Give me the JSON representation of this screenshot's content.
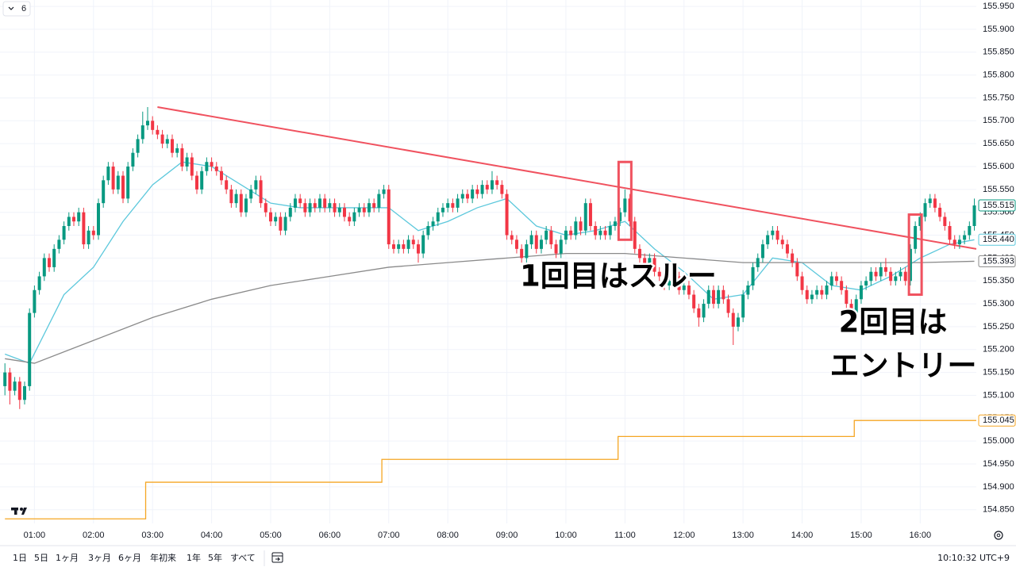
{
  "header": {
    "badge": "6"
  },
  "toolbar": {
    "ranges": [
      "1日",
      "5日",
      "1ヶ月",
      "3ヶ月",
      "6ヶ月",
      "年初来",
      "1年",
      "5年",
      "すべて"
    ],
    "clock": "10:10:32 UTC+9"
  },
  "chart_data": {
    "type": "candlestick",
    "up_color": "#089981",
    "down_color": "#f23645",
    "xlim": [
      "00:25",
      "16:57"
    ],
    "ylim": [
      154.82,
      155.964
    ],
    "xticks": [
      "01:00",
      "02:00",
      "03:00",
      "04:00",
      "05:00",
      "06:00",
      "07:00",
      "08:00",
      "09:00",
      "10:00",
      "11:00",
      "12:00",
      "13:00",
      "14:00",
      "15:00",
      "16:00"
    ],
    "yticks": [
      {
        "value": 154.85,
        "label": "154.850"
      },
      {
        "value": 154.9,
        "label": "154.900"
      },
      {
        "value": 154.95,
        "label": "154.950"
      },
      {
        "value": 155.0,
        "label": "155.000"
      },
      {
        "value": 155.05,
        "label": "155.050"
      },
      {
        "value": 155.1,
        "label": "155.100"
      },
      {
        "value": 155.15,
        "label": "155.150"
      },
      {
        "value": 155.2,
        "label": "155.200"
      },
      {
        "value": 155.25,
        "label": "155.250"
      },
      {
        "value": 155.3,
        "label": "155.300"
      },
      {
        "value": 155.35,
        "label": "155.350"
      },
      {
        "value": 155.4,
        "label": "155.400"
      },
      {
        "value": 155.45,
        "label": "155.450"
      },
      {
        "value": 155.5,
        "label": "155.500"
      },
      {
        "value": 155.55,
        "label": "155.550"
      },
      {
        "value": 155.6,
        "label": "155.600"
      },
      {
        "value": 155.65,
        "label": "155.650"
      },
      {
        "value": 155.7,
        "label": "155.700"
      },
      {
        "value": 155.75,
        "label": "155.750"
      },
      {
        "value": 155.8,
        "label": "155.800"
      },
      {
        "value": 155.85,
        "label": "155.850"
      },
      {
        "value": 155.9,
        "label": "155.900"
      },
      {
        "value": 155.95,
        "label": "155.950"
      }
    ],
    "grid": true,
    "x": [
      "00:30",
      "00:35",
      "00:40",
      "00:45",
      "00:50",
      "00:55",
      "01:00",
      "01:05",
      "01:10",
      "01:15",
      "01:20",
      "01:25",
      "01:30",
      "01:35",
      "01:40",
      "01:45",
      "01:50",
      "01:55",
      "02:00",
      "02:05",
      "02:10",
      "02:15",
      "02:20",
      "02:25",
      "02:30",
      "02:35",
      "02:40",
      "02:45",
      "02:50",
      "02:55",
      "03:00",
      "03:05",
      "03:10",
      "03:15",
      "03:20",
      "03:25",
      "03:30",
      "03:35",
      "03:40",
      "03:45",
      "03:50",
      "03:55",
      "04:00",
      "04:05",
      "04:10",
      "04:15",
      "04:20",
      "04:25",
      "04:30",
      "04:35",
      "04:40",
      "04:45",
      "04:50",
      "04:55",
      "05:00",
      "05:05",
      "05:10",
      "05:15",
      "05:20",
      "05:25",
      "05:30",
      "05:35",
      "05:40",
      "05:45",
      "05:50",
      "05:55",
      "06:00",
      "06:05",
      "06:10",
      "06:15",
      "06:20",
      "06:25",
      "06:30",
      "06:35",
      "06:40",
      "06:45",
      "06:50",
      "06:55",
      "07:00",
      "07:05",
      "07:10",
      "07:15",
      "07:20",
      "07:25",
      "07:30",
      "07:35",
      "07:40",
      "07:45",
      "07:50",
      "07:55",
      "08:00",
      "08:05",
      "08:10",
      "08:15",
      "08:20",
      "08:25",
      "08:30",
      "08:35",
      "08:40",
      "08:45",
      "08:50",
      "08:55",
      "09:00",
      "09:05",
      "09:10",
      "09:15",
      "09:20",
      "09:25",
      "09:30",
      "09:35",
      "09:40",
      "09:45",
      "09:50",
      "09:55",
      "10:00",
      "10:05",
      "10:10",
      "10:15",
      "10:20",
      "10:25",
      "10:30",
      "10:35",
      "10:40",
      "10:45",
      "10:50",
      "10:55",
      "11:00",
      "11:05",
      "11:10",
      "11:15",
      "11:20",
      "11:25",
      "11:30",
      "11:35",
      "11:40",
      "11:45",
      "11:50",
      "11:55",
      "12:00",
      "12:05",
      "12:10",
      "12:15",
      "12:20",
      "12:25",
      "12:30",
      "12:35",
      "12:40",
      "12:45",
      "12:50",
      "12:55",
      "13:00",
      "13:05",
      "13:10",
      "13:15",
      "13:20",
      "13:25",
      "13:30",
      "13:35",
      "13:40",
      "13:45",
      "13:50",
      "13:55",
      "14:00",
      "14:05",
      "14:10",
      "14:15",
      "14:20",
      "14:25",
      "14:30",
      "14:35",
      "14:40",
      "14:45",
      "14:50",
      "14:55",
      "15:00",
      "15:05",
      "15:10",
      "15:15",
      "15:20",
      "15:25",
      "15:30",
      "15:35",
      "15:40",
      "15:45",
      "15:50",
      "15:55",
      "16:00",
      "16:05",
      "16:10",
      "16:15",
      "16:20",
      "16:25",
      "16:30",
      "16:35",
      "16:40",
      "16:45",
      "16:50",
      "16:55"
    ],
    "open": [
      155.12,
      155.15,
      155.11,
      155.13,
      155.09,
      155.12,
      155.28,
      155.33,
      155.36,
      155.4,
      155.38,
      155.42,
      155.44,
      155.47,
      155.49,
      155.48,
      155.5,
      155.43,
      155.46,
      155.45,
      155.52,
      155.57,
      155.6,
      155.55,
      155.58,
      155.53,
      155.6,
      155.63,
      155.66,
      155.69,
      155.7,
      155.68,
      155.67,
      155.65,
      155.66,
      155.63,
      155.64,
      155.6,
      155.62,
      155.58,
      155.55,
      155.59,
      155.61,
      155.6,
      155.59,
      155.57,
      155.55,
      155.52,
      155.54,
      155.5,
      155.53,
      155.55,
      155.57,
      155.52,
      155.5,
      155.48,
      155.49,
      155.46,
      155.49,
      155.51,
      155.53,
      155.52,
      155.5,
      155.52,
      155.51,
      155.53,
      155.51,
      155.52,
      155.5,
      155.51,
      155.49,
      155.48,
      155.5,
      155.51,
      155.5,
      155.52,
      155.51,
      155.54,
      155.55,
      155.43,
      155.42,
      155.43,
      155.42,
      155.44,
      155.43,
      155.41,
      155.45,
      155.47,
      155.48,
      155.5,
      155.51,
      155.52,
      155.51,
      155.53,
      155.54,
      155.53,
      155.55,
      155.54,
      155.56,
      155.55,
      155.57,
      155.56,
      155.54,
      155.45,
      155.44,
      155.42,
      155.4,
      155.43,
      155.45,
      155.42,
      155.44,
      155.46,
      155.43,
      155.41,
      155.44,
      155.46,
      155.45,
      155.48,
      155.46,
      155.52,
      155.47,
      155.45,
      155.46,
      155.45,
      155.47,
      155.48,
      155.5,
      155.53,
      155.48,
      155.42,
      155.4,
      155.38,
      155.4,
      155.37,
      155.36,
      155.34,
      155.35,
      155.36,
      155.33,
      155.34,
      155.32,
      155.29,
      155.27,
      155.3,
      155.33,
      155.3,
      155.33,
      155.31,
      155.28,
      155.25,
      155.27,
      155.32,
      155.34,
      155.38,
      155.4,
      155.43,
      155.45,
      155.46,
      155.44,
      155.43,
      155.41,
      155.39,
      155.36,
      155.33,
      155.31,
      155.32,
      155.33,
      155.32,
      155.34,
      155.36,
      155.35,
      155.33,
      155.3,
      155.28,
      155.31,
      155.34,
      155.35,
      155.37,
      155.36,
      155.38,
      155.37,
      155.35,
      155.36,
      155.37,
      155.35,
      155.42,
      155.47,
      155.49,
      155.52,
      155.53,
      155.51,
      155.49,
      155.47,
      155.44,
      155.43,
      155.44,
      155.45,
      155.47
    ],
    "high": [
      155.17,
      155.16,
      155.14,
      155.14,
      155.13,
      155.29,
      155.34,
      155.37,
      155.41,
      155.41,
      155.43,
      155.45,
      155.48,
      155.5,
      155.5,
      155.51,
      155.51,
      155.47,
      155.47,
      155.53,
      155.58,
      155.61,
      155.61,
      155.59,
      155.59,
      155.61,
      155.64,
      155.67,
      155.72,
      155.73,
      155.71,
      155.69,
      155.68,
      155.67,
      155.67,
      155.65,
      155.65,
      155.63,
      155.63,
      155.59,
      155.6,
      155.62,
      155.62,
      155.61,
      155.6,
      155.58,
      155.56,
      155.55,
      155.55,
      155.54,
      155.56,
      155.58,
      155.58,
      155.53,
      155.51,
      155.5,
      155.5,
      155.5,
      155.52,
      155.54,
      155.54,
      155.53,
      155.53,
      155.53,
      155.54,
      155.54,
      155.53,
      155.53,
      155.52,
      155.52,
      155.5,
      155.51,
      155.52,
      155.52,
      155.53,
      155.53,
      155.55,
      155.56,
      155.56,
      155.44,
      155.44,
      155.44,
      155.45,
      155.45,
      155.44,
      155.46,
      155.48,
      155.49,
      155.51,
      155.52,
      155.53,
      155.53,
      155.54,
      155.55,
      155.55,
      155.56,
      155.56,
      155.57,
      155.57,
      155.59,
      155.58,
      155.57,
      155.55,
      155.46,
      155.45,
      155.43,
      155.44,
      155.46,
      155.46,
      155.45,
      155.47,
      155.47,
      155.44,
      155.45,
      155.47,
      155.47,
      155.49,
      155.49,
      155.53,
      155.53,
      155.48,
      155.47,
      155.47,
      155.48,
      155.49,
      155.51,
      155.55,
      155.54,
      155.49,
      155.43,
      155.41,
      155.41,
      155.41,
      155.38,
      155.37,
      155.36,
      155.37,
      155.37,
      155.35,
      155.35,
      155.33,
      155.3,
      155.31,
      155.34,
      155.34,
      155.34,
      155.34,
      155.32,
      155.29,
      155.28,
      155.33,
      155.35,
      155.39,
      155.41,
      155.44,
      155.46,
      155.47,
      155.47,
      155.45,
      155.44,
      155.42,
      155.4,
      155.37,
      155.34,
      155.33,
      155.34,
      155.34,
      155.35,
      155.37,
      155.37,
      155.36,
      155.34,
      155.31,
      155.32,
      155.35,
      155.36,
      155.38,
      155.38,
      155.39,
      155.4,
      155.38,
      155.37,
      155.38,
      155.38,
      155.43,
      155.48,
      155.5,
      155.53,
      155.54,
      155.54,
      155.52,
      155.5,
      155.48,
      155.45,
      155.45,
      155.46,
      155.48,
      155.53
    ],
    "low": [
      155.1,
      155.08,
      155.1,
      155.07,
      155.08,
      155.11,
      155.27,
      155.32,
      155.35,
      155.37,
      155.37,
      155.41,
      155.43,
      155.46,
      155.47,
      155.47,
      155.42,
      155.42,
      155.44,
      155.44,
      155.51,
      155.56,
      155.54,
      155.54,
      155.52,
      155.52,
      155.59,
      155.62,
      155.65,
      155.68,
      155.67,
      155.66,
      155.64,
      155.64,
      155.62,
      155.62,
      155.59,
      155.59,
      155.57,
      155.54,
      155.54,
      155.58,
      155.59,
      155.58,
      155.56,
      155.54,
      155.51,
      155.51,
      155.49,
      155.49,
      155.52,
      155.54,
      155.51,
      155.49,
      155.47,
      155.47,
      155.45,
      155.45,
      155.48,
      155.5,
      155.51,
      155.49,
      155.49,
      155.5,
      155.5,
      155.5,
      155.5,
      155.49,
      155.49,
      155.48,
      155.47,
      155.47,
      155.49,
      155.49,
      155.49,
      155.5,
      155.5,
      155.53,
      155.42,
      155.41,
      155.41,
      155.41,
      155.41,
      155.42,
      155.39,
      155.4,
      155.44,
      155.46,
      155.47,
      155.49,
      155.5,
      155.5,
      155.5,
      155.52,
      155.52,
      155.52,
      155.53,
      155.53,
      155.54,
      155.54,
      155.55,
      155.53,
      155.44,
      155.43,
      155.41,
      155.39,
      155.39,
      155.42,
      155.41,
      155.41,
      155.43,
      155.42,
      155.4,
      155.4,
      155.43,
      155.44,
      155.44,
      155.45,
      155.45,
      155.46,
      155.44,
      155.44,
      155.44,
      155.44,
      155.46,
      155.47,
      155.49,
      155.47,
      155.41,
      155.39,
      155.37,
      155.37,
      155.36,
      155.35,
      155.33,
      155.33,
      155.34,
      155.32,
      155.32,
      155.31,
      155.28,
      155.25,
      155.26,
      155.29,
      155.29,
      155.29,
      155.3,
      155.27,
      155.21,
      155.24,
      155.26,
      155.31,
      155.33,
      155.37,
      155.39,
      155.42,
      155.44,
      155.43,
      155.42,
      155.4,
      155.38,
      155.35,
      155.32,
      155.3,
      155.3,
      155.31,
      155.31,
      155.31,
      155.33,
      155.34,
      155.32,
      155.29,
      155.27,
      155.27,
      155.3,
      155.33,
      155.34,
      155.35,
      155.35,
      155.36,
      155.34,
      155.34,
      155.35,
      155.34,
      155.34,
      155.41,
      155.46,
      155.48,
      155.51,
      155.5,
      155.48,
      155.46,
      155.43,
      155.42,
      155.42,
      155.43,
      155.44,
      155.46
    ],
    "close": [
      155.15,
      155.11,
      155.13,
      155.09,
      155.12,
      155.28,
      155.33,
      155.36,
      155.4,
      155.38,
      155.42,
      155.44,
      155.47,
      155.49,
      155.48,
      155.5,
      155.43,
      155.46,
      155.45,
      155.52,
      155.57,
      155.6,
      155.55,
      155.58,
      155.53,
      155.6,
      155.63,
      155.66,
      155.69,
      155.7,
      155.68,
      155.67,
      155.65,
      155.66,
      155.63,
      155.64,
      155.6,
      155.62,
      155.58,
      155.55,
      155.59,
      155.61,
      155.6,
      155.59,
      155.57,
      155.55,
      155.52,
      155.54,
      155.5,
      155.53,
      155.55,
      155.57,
      155.52,
      155.5,
      155.48,
      155.49,
      155.46,
      155.49,
      155.51,
      155.53,
      155.52,
      155.5,
      155.52,
      155.51,
      155.53,
      155.51,
      155.52,
      155.5,
      155.51,
      155.49,
      155.48,
      155.5,
      155.51,
      155.5,
      155.52,
      155.51,
      155.54,
      155.55,
      155.43,
      155.42,
      155.43,
      155.42,
      155.44,
      155.43,
      155.41,
      155.45,
      155.47,
      155.48,
      155.5,
      155.51,
      155.52,
      155.51,
      155.53,
      155.54,
      155.53,
      155.55,
      155.54,
      155.56,
      155.55,
      155.57,
      155.56,
      155.54,
      155.45,
      155.44,
      155.42,
      155.4,
      155.43,
      155.45,
      155.42,
      155.44,
      155.46,
      155.43,
      155.41,
      155.44,
      155.46,
      155.45,
      155.48,
      155.46,
      155.52,
      155.47,
      155.45,
      155.46,
      155.45,
      155.47,
      155.48,
      155.5,
      155.53,
      155.48,
      155.42,
      155.4,
      155.38,
      155.4,
      155.37,
      155.36,
      155.34,
      155.35,
      155.36,
      155.33,
      155.34,
      155.32,
      155.29,
      155.27,
      155.3,
      155.33,
      155.3,
      155.33,
      155.31,
      155.28,
      155.25,
      155.27,
      155.32,
      155.34,
      155.38,
      155.4,
      155.43,
      155.45,
      155.46,
      155.44,
      155.43,
      155.41,
      155.39,
      155.36,
      155.33,
      155.31,
      155.32,
      155.33,
      155.32,
      155.34,
      155.36,
      155.35,
      155.33,
      155.3,
      155.28,
      155.31,
      155.34,
      155.35,
      155.37,
      155.36,
      155.38,
      155.37,
      155.35,
      155.36,
      155.37,
      155.35,
      155.42,
      155.47,
      155.49,
      155.52,
      155.53,
      155.51,
      155.49,
      155.47,
      155.44,
      155.43,
      155.44,
      155.45,
      155.47,
      155.515
    ],
    "overlays": [
      {
        "style": "line",
        "color": "#5cc8dc",
        "x": [
          "00:30",
          "00:55",
          "01:30",
          "02:00",
          "02:30",
          "03:00",
          "03:30",
          "04:00",
          "04:30",
          "05:00",
          "05:30",
          "06:00",
          "06:30",
          "07:00",
          "07:30",
          "08:00",
          "08:30",
          "09:00",
          "09:30",
          "10:00",
          "10:30",
          "11:00",
          "11:30",
          "12:00",
          "12:30",
          "13:00",
          "13:30",
          "14:00",
          "14:30",
          "15:00",
          "15:30",
          "16:00",
          "16:30",
          "16:55"
        ],
        "values": [
          155.19,
          155.17,
          155.32,
          155.38,
          155.48,
          155.56,
          155.61,
          155.6,
          155.56,
          155.52,
          155.51,
          155.51,
          155.51,
          155.51,
          155.46,
          155.48,
          155.51,
          155.53,
          155.47,
          155.45,
          155.46,
          155.48,
          155.42,
          155.37,
          155.31,
          155.32,
          155.4,
          155.39,
          155.34,
          155.33,
          155.36,
          155.4,
          155.43,
          155.44
        ],
        "price_label": "155.440"
      },
      {
        "style": "line",
        "color": "#8a8a8a",
        "x": [
          "00:30",
          "01:00",
          "02:00",
          "03:00",
          "04:00",
          "05:00",
          "06:00",
          "07:00",
          "08:00",
          "09:00",
          "10:00",
          "11:00",
          "12:00",
          "13:00",
          "14:00",
          "15:00",
          "16:00",
          "16:55"
        ],
        "values": [
          155.18,
          155.17,
          155.22,
          155.27,
          155.31,
          155.34,
          155.36,
          155.38,
          155.39,
          155.4,
          155.41,
          155.41,
          155.4,
          155.39,
          155.39,
          155.39,
          155.39,
          155.393
        ],
        "price_label": "155.393"
      },
      {
        "style": "step",
        "color": "#f5a623",
        "x": [
          "00:30",
          "02:53",
          "06:53",
          "10:53",
          "14:53"
        ],
        "values": [
          154.83,
          154.91,
          154.96,
          155.01,
          155.045
        ],
        "price_label": "155.045"
      }
    ],
    "trendline": {
      "color": "#f0525f",
      "x": [
        "03:05",
        "16:57"
      ],
      "values": [
        155.73,
        155.42
      ]
    },
    "highlights": [
      {
        "x": "11:00",
        "y": [
          155.44,
          155.61
        ]
      },
      {
        "x": "15:55",
        "y": [
          155.32,
          155.495
        ]
      }
    ],
    "annotations": [
      {
        "text": "1回目はスルー"
      },
      {
        "text": "2回目は"
      },
      {
        "text": "エントリー"
      }
    ]
  }
}
